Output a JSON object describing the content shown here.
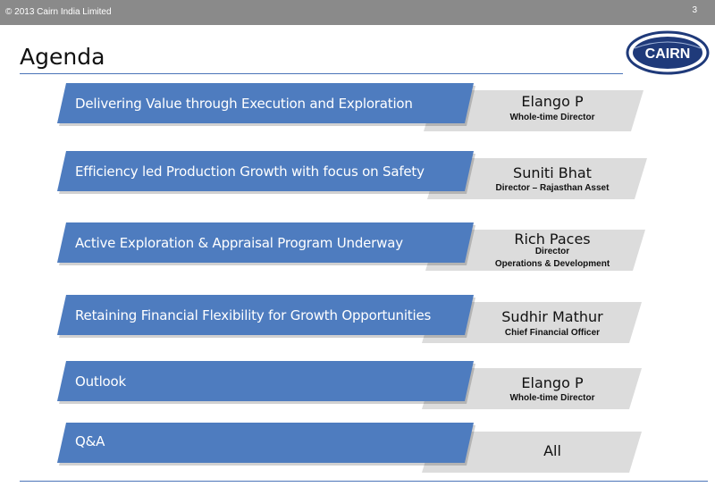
{
  "header": {
    "copyright": "© 2013 Cairn India Limited",
    "page_number": "3"
  },
  "title": "Agenda",
  "logo_text": "CAIRN",
  "agenda": [
    {
      "topic": "Delivering Value through Execution and Exploration",
      "presenter": "Elango P",
      "role_lines": [
        "Whole-time Director"
      ]
    },
    {
      "topic": "Efficiency led Production Growth with focus on Safety",
      "presenter": "Suniti Bhat",
      "role_lines": [
        "Director – Rajasthan Asset"
      ]
    },
    {
      "topic": "Active Exploration & Appraisal Program Underway",
      "presenter": "Rich Paces",
      "role_lines": [
        "Director",
        "Operations & Development"
      ]
    },
    {
      "topic": "Retaining Financial Flexibility for Growth Opportunities",
      "presenter": "Sudhir Mathur",
      "role_lines": [
        "Chief Financial  Officer"
      ]
    },
    {
      "topic": "Outlook",
      "presenter": "Elango P",
      "role_lines": [
        "Whole-time Director"
      ]
    },
    {
      "topic": "Q&A",
      "presenter": "All",
      "role_lines": []
    }
  ],
  "colors": {
    "accent": "#4e7cbf",
    "grey_box": "#dcdcdc",
    "topbar": "#8a8a8a",
    "logo_navy": "#1f3a7a"
  }
}
